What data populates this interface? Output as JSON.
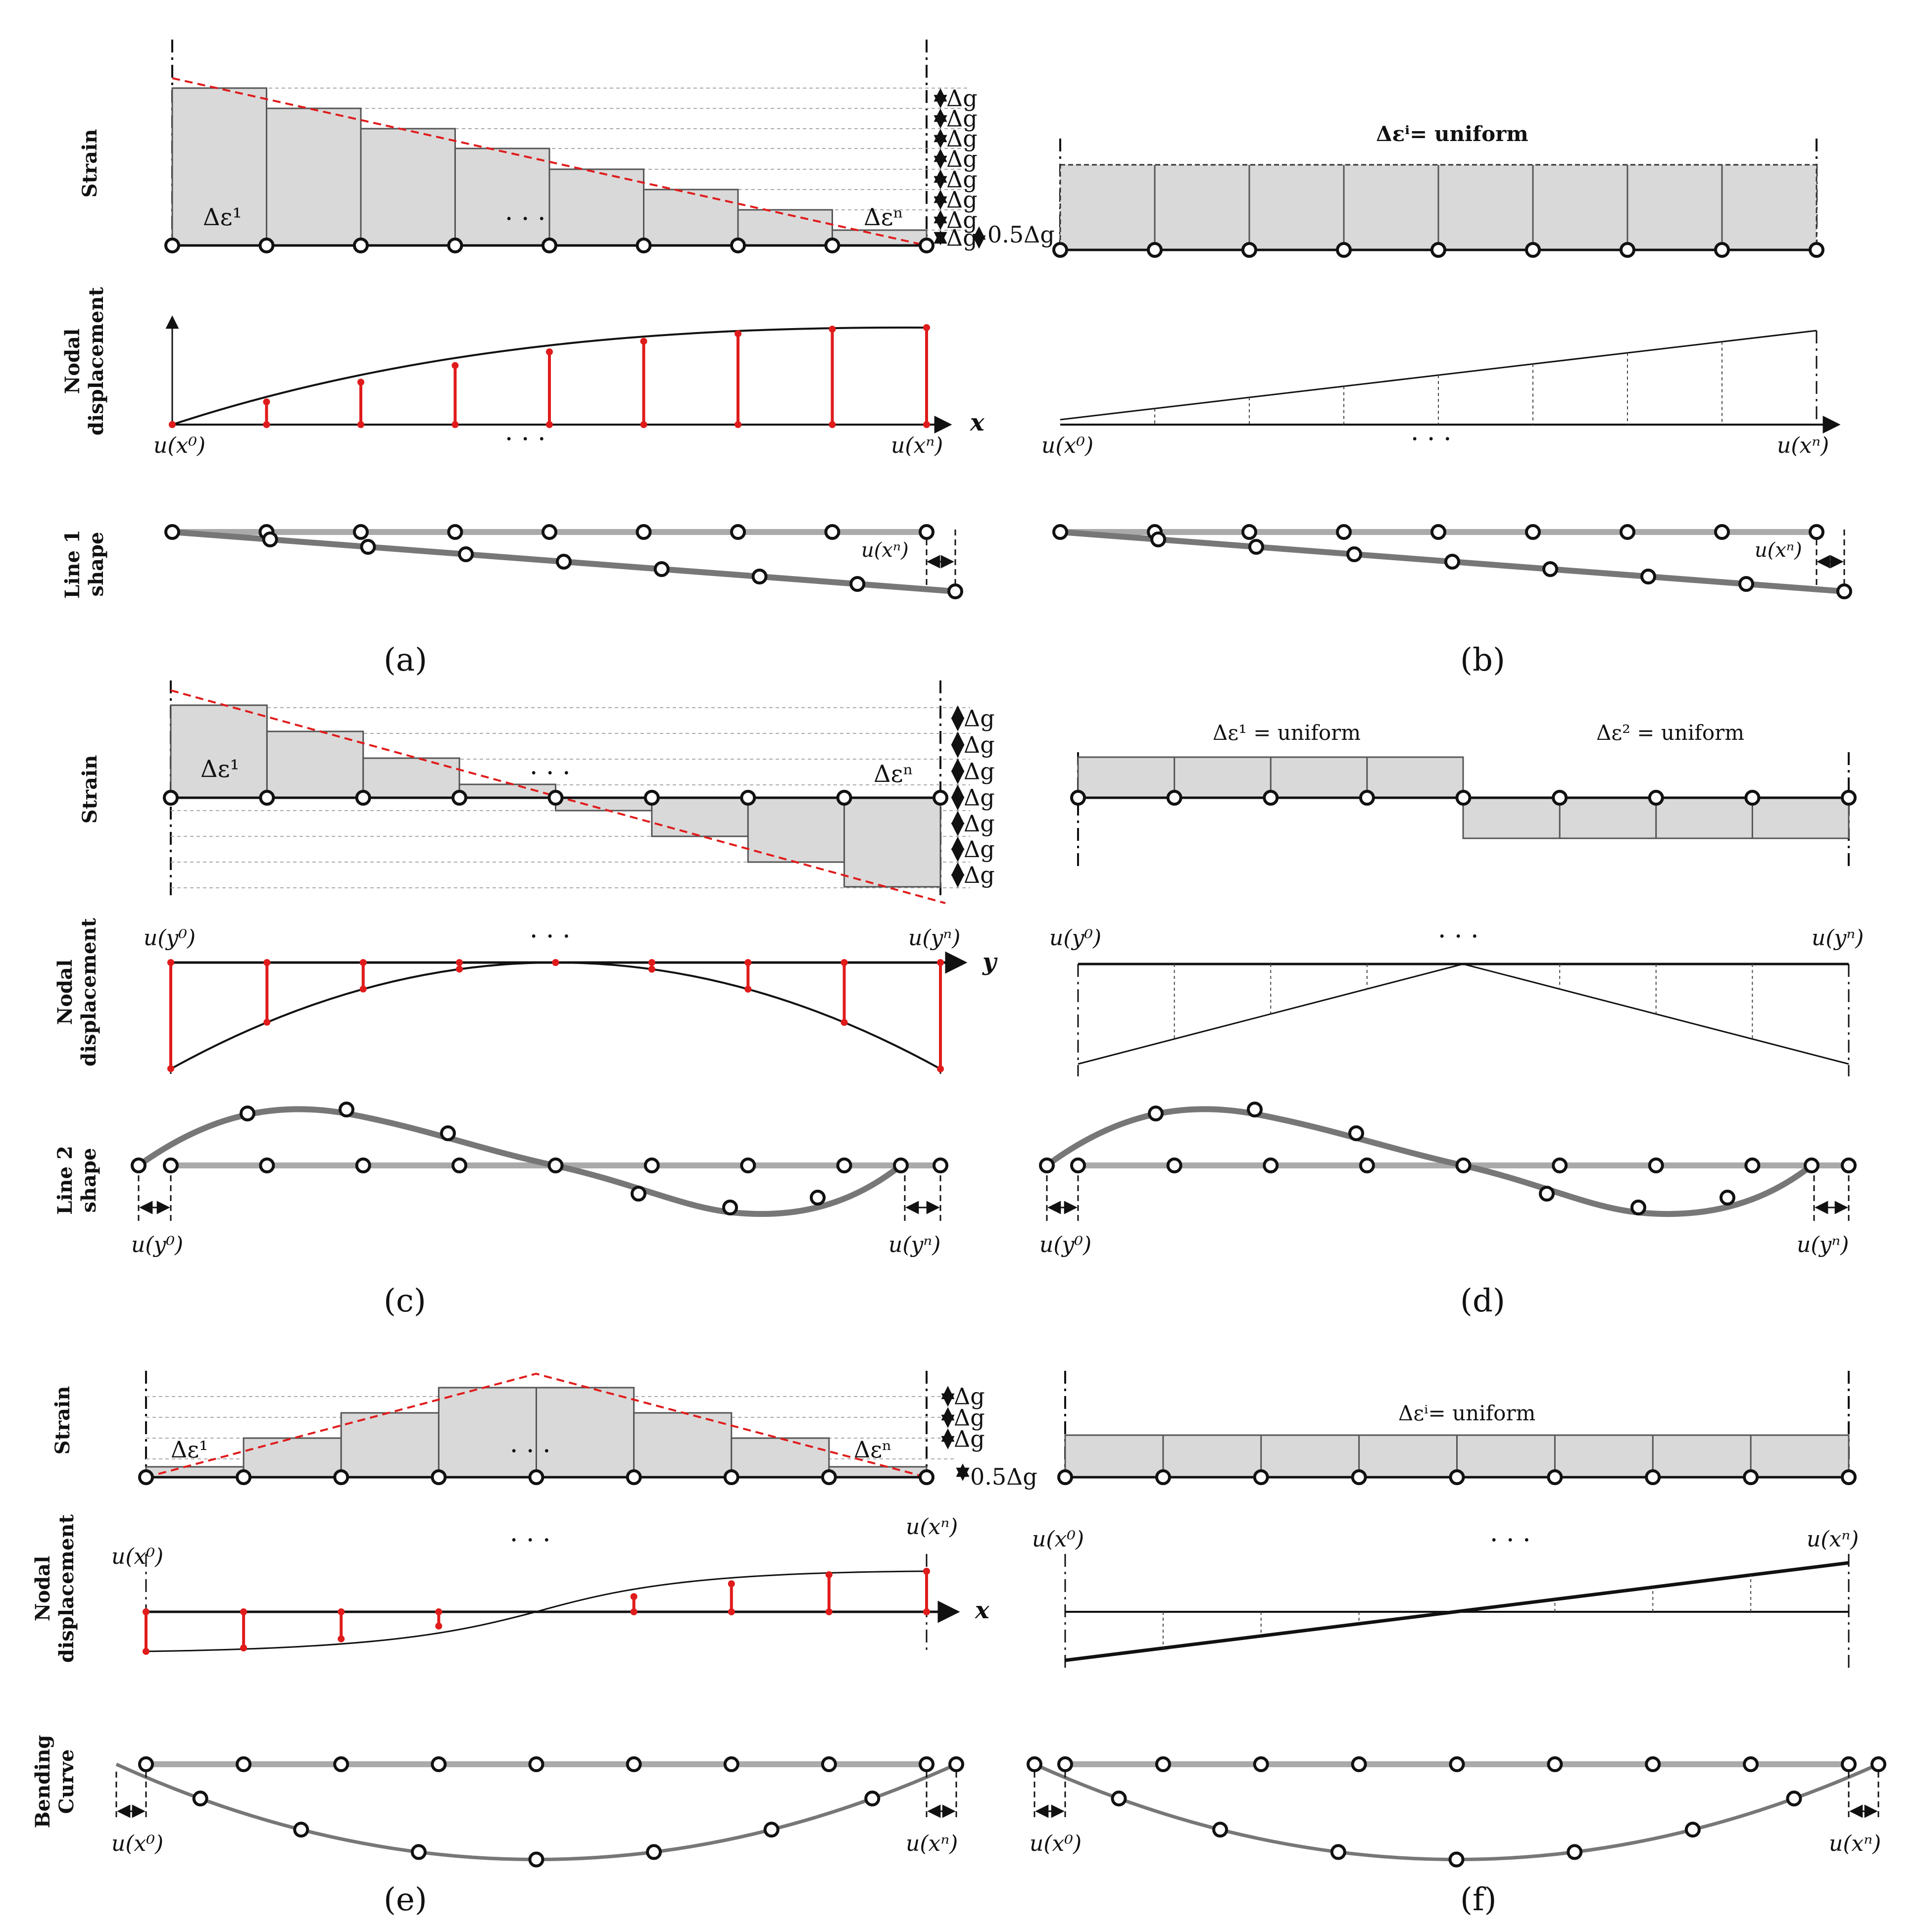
{
  "colors": {
    "fill": "#d9d9d9",
    "stroke": "#555555",
    "accent": "#e01b1b",
    "grey_line": "#aaaaaa",
    "curve": "#777777"
  },
  "labels": {
    "strain": "Strain",
    "nodal1": "Nodal",
    "nodal2": "displacement",
    "line1_a": "Line 1",
    "line1_b": "shape",
    "line2_a": "Line 2",
    "line2_b": "shape",
    "bend_a": "Bending",
    "bend_b": "Curve",
    "dg": "Δg",
    "half_dg": "0.5Δg",
    "dots": "· · ·",
    "x_axis": "x",
    "y_axis": "y",
    "u_x0": "u(x⁰)",
    "u_xn": "u(xⁿ)",
    "u_y0": "u(y⁰)",
    "u_yn": "u(yⁿ)",
    "eps1": "Δε¹",
    "epsn": "Δεⁿ",
    "eps_i_uniform_bold": "Δεⁱ= uniform",
    "eps_i_uniform": "Δεⁱ= uniform",
    "eps1_uniform": "Δε¹ = uniform",
    "eps2_uniform": "Δε² = uniform"
  },
  "panels": {
    "a": "(a)",
    "b": "(b)",
    "c": "(c)",
    "d": "(d)",
    "e": "(e)",
    "f": "(f)"
  }
}
